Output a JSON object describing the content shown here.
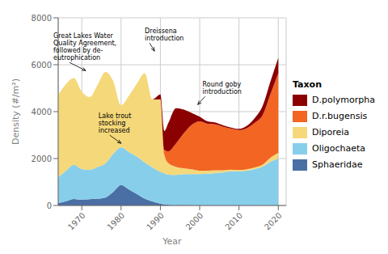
{
  "chart_data": {
    "type": "area",
    "stacked": true,
    "xlabel": "Year",
    "ylabel": "Density (#/m²)",
    "xlim": [
      1964,
      2022
    ],
    "ylim": [
      0,
      8000
    ],
    "xticks": [
      1970,
      1980,
      1990,
      2000,
      2010,
      2020
    ],
    "yticks": [
      0,
      2000,
      4000,
      6000,
      8000
    ],
    "grid": true,
    "legend": "right",
    "legend_title": "Taxon",
    "x": [
      1964,
      1966,
      1968,
      1970,
      1972,
      1974,
      1976,
      1978,
      1980,
      1982,
      1984,
      1986,
      1988,
      1990,
      1991,
      1992,
      1994,
      1996,
      1998,
      2000,
      2002,
      2004,
      2006,
      2008,
      2010,
      2012,
      2014,
      2016,
      2018,
      2020
    ],
    "series": [
      {
        "name": "Sphaeridae",
        "color": "#4a6fa5",
        "values": [
          100,
          180,
          280,
          250,
          270,
          290,
          340,
          580,
          870,
          680,
          490,
          290,
          170,
          80,
          50,
          30,
          20,
          15,
          10,
          5,
          3,
          3,
          3,
          3,
          3,
          3,
          3,
          5,
          8,
          10
        ]
      },
      {
        "name": "Oligochaeta",
        "color": "#87ceeb",
        "values": [
          1100,
          1300,
          1450,
          1300,
          1250,
          1350,
          1450,
          1620,
          1600,
          1600,
          1600,
          1550,
          1450,
          1350,
          1320,
          1280,
          1280,
          1320,
          1330,
          1330,
          1350,
          1380,
          1400,
          1450,
          1450,
          1480,
          1550,
          1650,
          1850,
          2000
        ]
      },
      {
        "name": "Diporeia",
        "color": "#f5d87a",
        "values": [
          3500,
          3700,
          3700,
          3300,
          3100,
          3500,
          3900,
          3100,
          1800,
          2400,
          3100,
          3800,
          2900,
          3100,
          800,
          500,
          350,
          250,
          200,
          150,
          130,
          120,
          100,
          70,
          60,
          60,
          70,
          90,
          180,
          230
        ]
      },
      {
        "name": "D.r.bugensis",
        "color": "#f26522",
        "values": [
          0,
          0,
          0,
          0,
          0,
          0,
          0,
          0,
          0,
          0,
          0,
          0,
          0,
          0,
          200,
          500,
          1000,
          1500,
          1900,
          2100,
          2000,
          1950,
          1850,
          1750,
          1700,
          1750,
          1900,
          2100,
          2700,
          3400
        ]
      },
      {
        "name": "D.polymorpha",
        "color": "#8b0000",
        "values": [
          0,
          0,
          0,
          0,
          0,
          0,
          0,
          0,
          0,
          0,
          0,
          0,
          0,
          200,
          800,
          1200,
          1500,
          1000,
          500,
          200,
          100,
          80,
          60,
          50,
          50,
          100,
          200,
          400,
          550,
          650
        ]
      }
    ],
    "annotations": [
      {
        "text": "Great Lakes Water\nQuality Agreement,\nfollowed by de-\neutrophication",
        "x": 1971,
        "y": 5750
      },
      {
        "text": "Lake trout\nstocking\nincreased",
        "x": 1980,
        "y": 2650
      },
      {
        "text": "Dreissena\nintroduction",
        "x": 1988.5,
        "y": 6580
      },
      {
        "text": "Round goby\nintroduction",
        "x": 1999.5,
        "y": 4300
      }
    ]
  }
}
